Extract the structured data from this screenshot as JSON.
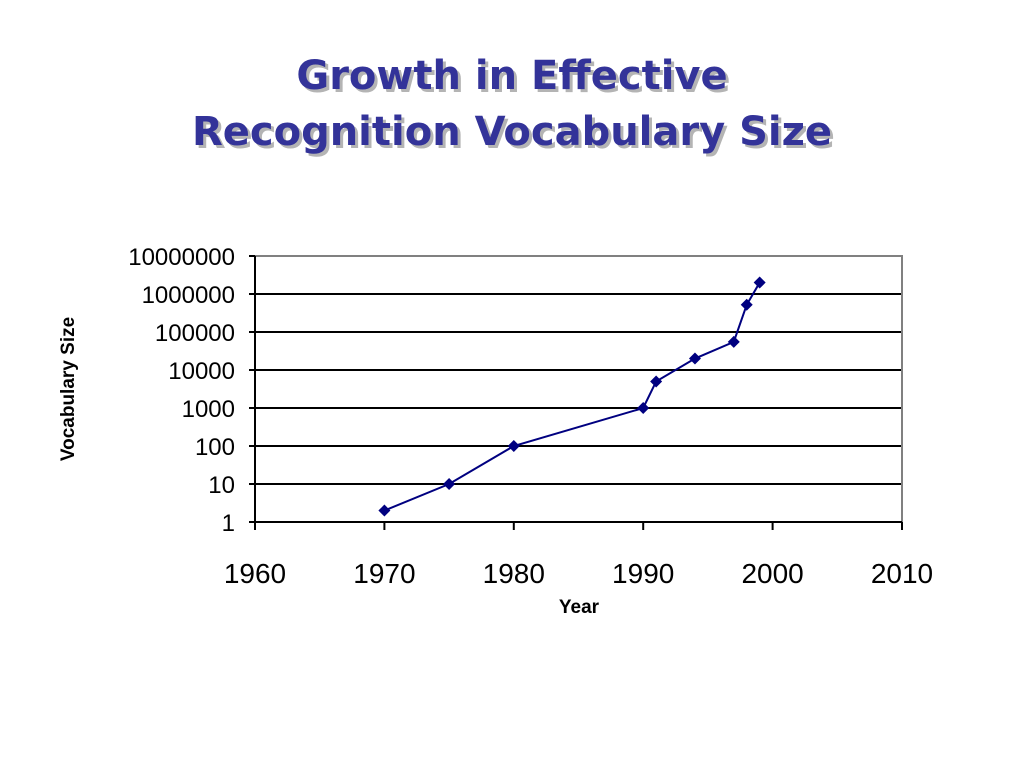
{
  "slide": {
    "title_line1": "Growth in Effective",
    "title_line2": "Recognition Vocabulary Size"
  },
  "colors": {
    "title": "#333399",
    "title_shadow": "#b4b4b4",
    "series": "#000080",
    "gridline": "#000000",
    "plot_border": "#808080"
  },
  "chart_data": {
    "type": "line",
    "title": "",
    "xlabel": "Year",
    "ylabel": "Vocabulary Size",
    "xlim": [
      1960,
      2010
    ],
    "ylim": [
      1,
      10000000
    ],
    "y_scale": "log",
    "grid": "horizontal major gridlines",
    "legend": "none",
    "x_ticks": [
      "1960",
      "1970",
      "1980",
      "1990",
      "2000",
      "2010"
    ],
    "y_ticks": [
      "1",
      "10",
      "100",
      "1000",
      "10000",
      "100000",
      "1000000",
      "10000000"
    ],
    "marker": "diamond",
    "series": [
      {
        "x": [
          1970,
          1975,
          1980,
          1990,
          1991,
          1994,
          1997,
          1998,
          1999
        ],
        "y": [
          2,
          10,
          100,
          1000,
          5000,
          20000,
          55000,
          520000,
          2000000
        ]
      }
    ]
  }
}
